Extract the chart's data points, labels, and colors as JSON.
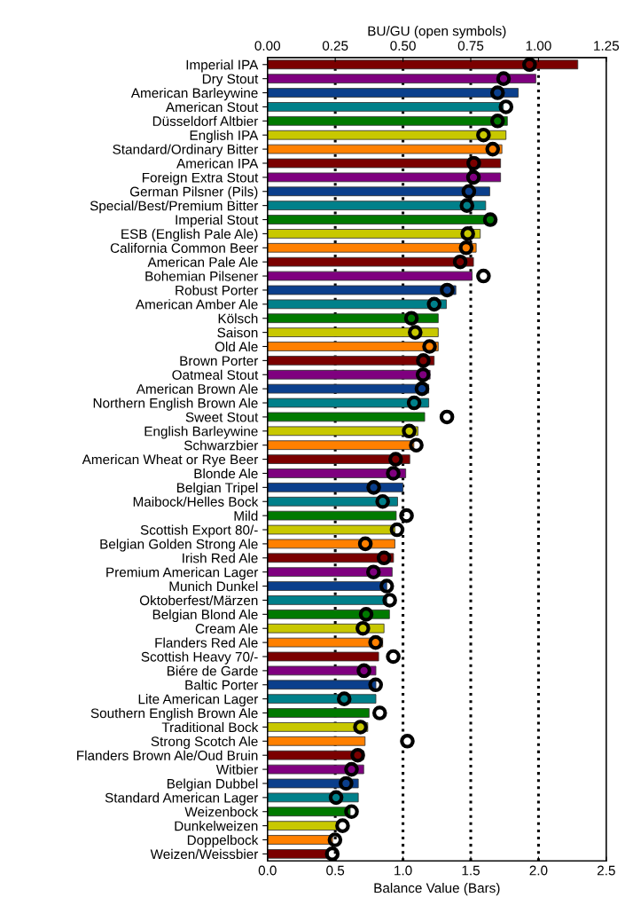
{
  "chart_data": {
    "type": "bar",
    "orientation": "horizontal",
    "xlabel": "Balance Value (Bars)",
    "x2label": "BU/GU (open symbols)",
    "categories": [
      "Imperial IPA",
      "Dry Stout",
      "American Barleywine",
      "American Stout",
      "Düsseldorf Altbier",
      "English IPA",
      "Standard/Ordinary Bitter",
      "American IPA",
      "Foreign Extra Stout",
      "German Pilsner (Pils)",
      "Special/Best/Premium Bitter",
      "Imperial Stout",
      "ESB (English Pale Ale)",
      "California Common Beer",
      "American Pale Ale",
      "Bohemian Pilsener",
      "Robust Porter",
      "American Amber Ale",
      "Kölsch",
      "Saison",
      "Old Ale",
      "Brown Porter",
      "Oatmeal Stout",
      "American Brown Ale",
      "Northern English Brown Ale",
      "Sweet Stout",
      "English Barleywine",
      "Schwarzbier",
      "American Wheat or Rye Beer",
      "Blonde Ale",
      "Belgian Tripel",
      "Maibock/Helles Bock",
      "Mild",
      "Scottish Export 80/-",
      "Belgian Golden Strong Ale",
      "Irish Red Ale",
      "Premium American Lager",
      "Munich Dunkel",
      "Oktoberfest/Märzen",
      "Belgian Blond Ale",
      "Cream Ale",
      "Flanders Red Ale",
      "Scottish Heavy 70/-",
      "Biére de Garde",
      "Baltic Porter",
      "Lite American Lager",
      "Southern English Brown Ale",
      "Traditional Bock",
      "Strong Scotch Ale",
      "Flanders Brown Ale/Oud Bruin",
      "Witbier",
      "Belgian Dubbel",
      "Standard American Lager",
      "Weizenbock",
      "Dunkelweizen",
      "Doppelbock",
      "Weizen/Weissbier"
    ],
    "series": [
      {
        "colors": [
          "#7b0000",
          "#7f007f",
          "#0b3f8c",
          "#00808a",
          "#007a00",
          "#c8c800",
          "#ff8000",
          "#7b0000",
          "#7f007f",
          "#0b3f8c",
          "#00808a",
          "#007a00",
          "#c8c800",
          "#ff8000",
          "#7b0000",
          "#7f007f",
          "#0b3f8c",
          "#00808a",
          "#007a00",
          "#c8c800",
          "#ff8000",
          "#7b0000",
          "#7f007f",
          "#0b3f8c",
          "#00808a",
          "#007a00",
          "#c8c800",
          "#ff8000",
          "#7b0000",
          "#7f007f",
          "#0b3f8c",
          "#00808a",
          "#007a00",
          "#c8c800",
          "#ff8000",
          "#7b0000",
          "#7f007f",
          "#0b3f8c",
          "#00808a",
          "#007a00",
          "#c8c800",
          "#ff8000",
          "#7b0000",
          "#7f007f",
          "#0b3f8c",
          "#00808a",
          "#007a00",
          "#c8c800",
          "#ff8000",
          "#7b0000",
          "#7f007f",
          "#0b3f8c",
          "#00808a",
          "#007a00",
          "#c8c800",
          "#ff8000",
          "#7b0000"
        ],
        "values": [
          2.29,
          1.98,
          1.85,
          1.74,
          1.77,
          1.76,
          1.73,
          1.72,
          1.72,
          1.64,
          1.61,
          1.67,
          1.57,
          1.54,
          1.52,
          1.51,
          1.39,
          1.32,
          1.26,
          1.26,
          1.26,
          1.23,
          1.2,
          1.19,
          1.19,
          1.16,
          1.11,
          1.08,
          1.05,
          1.02,
          1.0,
          0.96,
          0.95,
          0.94,
          0.94,
          0.93,
          0.92,
          0.88,
          0.88,
          0.9,
          0.86,
          0.85,
          0.82,
          0.8,
          0.8,
          0.8,
          0.75,
          0.74,
          0.72,
          0.71,
          0.71,
          0.67,
          0.67,
          0.61,
          0.51,
          0.48,
          0.45
        ]
      },
      {
        "type": "scatter",
        "axis": "x2",
        "color": "#000000",
        "marker": "circle",
        "values": [
          0.967,
          0.871,
          0.849,
          0.88,
          0.849,
          0.797,
          0.831,
          0.761,
          0.76,
          0.743,
          0.736,
          0.822,
          0.739,
          0.733,
          0.711,
          0.797,
          0.663,
          0.615,
          0.531,
          0.545,
          0.598,
          0.575,
          0.574,
          0.57,
          0.541,
          0.662,
          0.523,
          0.549,
          0.473,
          0.464,
          0.392,
          0.425,
          0.513,
          0.478,
          0.361,
          0.43,
          0.391,
          0.44,
          0.451,
          0.364,
          0.352,
          0.399,
          0.464,
          0.356,
          0.399,
          0.283,
          0.414,
          0.343,
          0.516,
          0.333,
          0.31,
          0.29,
          0.253,
          0.31,
          0.277,
          0.249,
          0.239
        ]
      }
    ],
    "xlim": [
      0,
      2.5
    ],
    "xticks": [
      {
        "value": 0,
        "label": "0.0"
      },
      {
        "value": 0.5,
        "label": "0.5"
      },
      {
        "value": 1,
        "label": "1.0"
      },
      {
        "value": 1.5,
        "label": "1.5"
      },
      {
        "value": 2,
        "label": "2.0"
      },
      {
        "value": 2.5,
        "label": "2.5"
      }
    ],
    "x2lim": [
      0,
      1.25
    ],
    "x2ticks": [
      {
        "value": 0,
        "label": "0.00"
      },
      {
        "value": 0.25,
        "label": "0.25"
      },
      {
        "value": 0.5,
        "label": "0.50"
      },
      {
        "value": 0.75,
        "label": "0.75"
      },
      {
        "value": 1,
        "label": "1.00"
      },
      {
        "value": 1.25,
        "label": "1.25"
      }
    ],
    "ref_lines": [
      {
        "axis": "x",
        "value": 0.5,
        "color": "#000000",
        "line_style": "dotted"
      },
      {
        "axis": "x",
        "value": 1,
        "color": "#000000",
        "line_style": "dotted"
      },
      {
        "axis": "x",
        "value": 1.5,
        "color": "#000000",
        "line_style": "dotted"
      },
      {
        "axis": "x",
        "value": 2,
        "color": "#000000",
        "line_style": "dotted"
      }
    ],
    "grid": false,
    "legend": false
  }
}
